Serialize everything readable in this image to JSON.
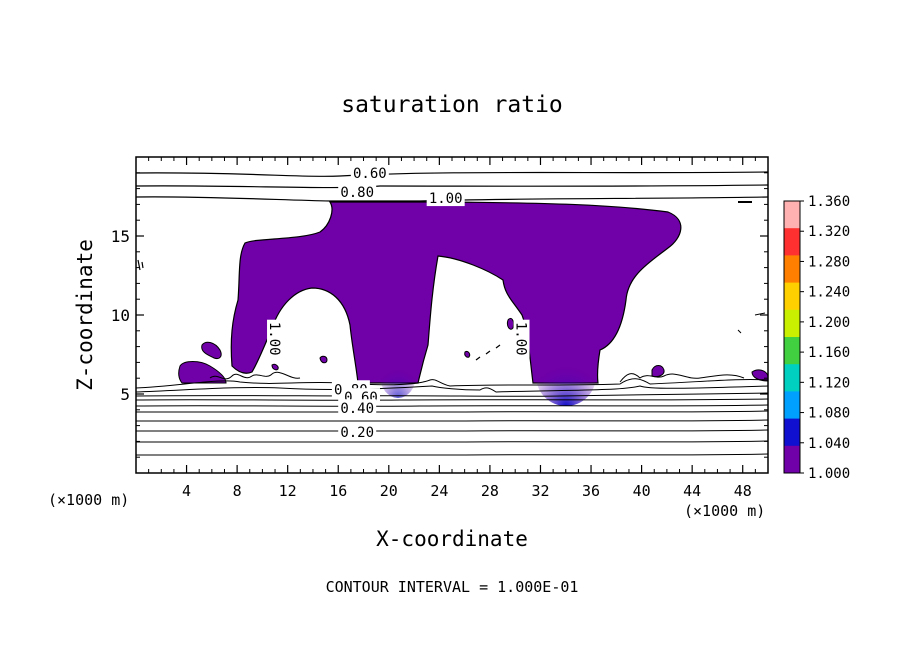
{
  "chart_data": {
    "type": "heatmap",
    "title": "saturation ratio",
    "xlabel": "X-coordinate",
    "ylabel": "Z-coordinate",
    "x_unit": "(×1000 m)",
    "x_unit_right": "(×1000 m)",
    "xlim": [
      0,
      50
    ],
    "ylim": [
      0,
      20
    ],
    "x_ticks": [
      4,
      8,
      12,
      16,
      20,
      24,
      28,
      32,
      36,
      40,
      44,
      48
    ],
    "y_ticks": [
      5,
      10,
      15
    ],
    "colorbar": {
      "ticks": [
        "1.360",
        "1.320",
        "1.280",
        "1.240",
        "1.200",
        "1.160",
        "1.120",
        "1.080",
        "1.040",
        "1.000"
      ],
      "colors": [
        "#ffb0b0",
        "#ff3030",
        "#ff8000",
        "#ffd000",
        "#c8f000",
        "#40d040",
        "#00d0c0",
        "#00a0ff",
        "#1010d0",
        "#7000a8"
      ]
    },
    "contour_labels": [
      {
        "text": "0.60",
        "x": 18.5,
        "y": 19.0
      },
      {
        "text": "0.80",
        "x": 17.5,
        "y": 17.8
      },
      {
        "text": "1.00",
        "x": 24.5,
        "y": 17.4
      },
      {
        "text": "1.00",
        "x": 11.0,
        "y": 8.5
      },
      {
        "text": "1.00",
        "x": 30.5,
        "y": 8.5
      },
      {
        "text": "0.80",
        "x": 17.0,
        "y": 5.3
      },
      {
        "text": "0.60",
        "x": 17.8,
        "y": 4.8
      },
      {
        "text": "0.40",
        "x": 17.5,
        "y": 4.1
      },
      {
        "text": "0.20",
        "x": 17.5,
        "y": 2.6
      }
    ],
    "footer": "CONTOUR INTERVAL = 1.000E-01"
  }
}
